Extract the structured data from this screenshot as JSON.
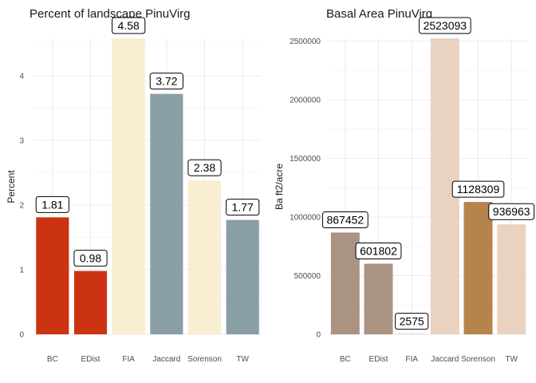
{
  "chart_data": [
    {
      "type": "bar",
      "title": "Percent of landscape  PinuVirg",
      "xlabel": "",
      "ylabel": "Percent",
      "categories": [
        "BC",
        "EDist",
        "FIA",
        "Jaccard",
        "Sorenson",
        "TW"
      ],
      "values": [
        1.81,
        0.98,
        4.58,
        3.72,
        2.38,
        1.77
      ],
      "labels": [
        "1.81",
        "0.98",
        "4.58",
        "3.72",
        "2.38",
        "1.77"
      ],
      "colors": [
        "#cc3311",
        "#cc3311",
        "#f9eed1",
        "#8a9ea6",
        "#f9eed1",
        "#8a9ea6"
      ],
      "ylim": [
        0,
        4.58
      ],
      "yticks": [
        0,
        1,
        2,
        3,
        4
      ],
      "ytick_labels": [
        "0",
        "1",
        "2",
        "3",
        "4"
      ],
      "grid": true,
      "legend": "none"
    },
    {
      "type": "bar",
      "title": "Basal Area  PinuVirg",
      "xlabel": "",
      "ylabel": "Ba ft2/acre",
      "categories": [
        "BC",
        "EDist",
        "FIA",
        "Jaccard",
        "Sorenson",
        "TW"
      ],
      "values": [
        867452,
        601802,
        2575,
        2523093,
        1128309,
        936963
      ],
      "labels": [
        "867452",
        "601802",
        "2575",
        "2523093",
        "1128309",
        "936963"
      ],
      "colors": [
        "#ab9384",
        "#ab9384",
        "#ab9384",
        "#ead2c0",
        "#b5844d",
        "#ead2c0"
      ],
      "ylim": [
        0,
        2523093
      ],
      "yticks": [
        0,
        500000,
        1000000,
        1500000,
        2000000,
        2500000
      ],
      "ytick_labels": [
        "0",
        "500000",
        "1000000",
        "1500000",
        "2000000",
        "2500000"
      ],
      "grid": true,
      "legend": "none"
    }
  ]
}
